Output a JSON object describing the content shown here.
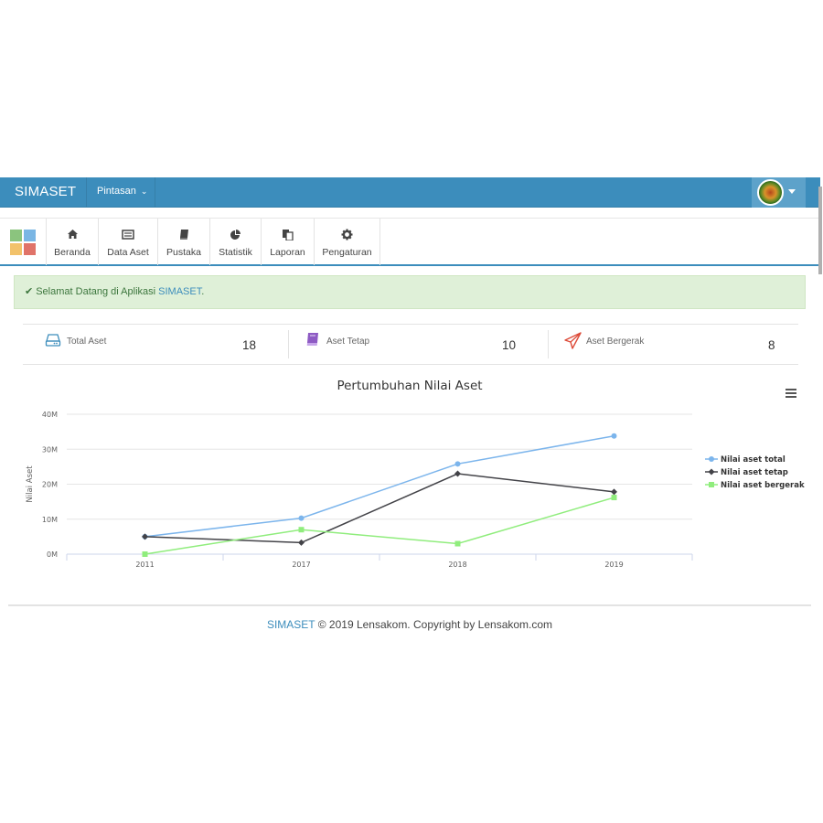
{
  "navbar": {
    "brand": "SIMASET",
    "shortcut_label": "Pintasan",
    "shortcut_caret": "⌄"
  },
  "toolbar": {
    "items": [
      {
        "label": "Beranda",
        "icon": "home-icon"
      },
      {
        "label": "Data Aset",
        "icon": "list-icon"
      },
      {
        "label": "Pustaka",
        "icon": "book-icon"
      },
      {
        "label": "Statistik",
        "icon": "pie-chart-icon"
      },
      {
        "label": "Laporan",
        "icon": "copy-icon"
      },
      {
        "label": "Pengaturan",
        "icon": "gear-icon"
      }
    ]
  },
  "alert": {
    "check": "✔",
    "text": "Selamat Datang di Aplikasi ",
    "brand": "SIMASET",
    "end": "."
  },
  "stats": [
    {
      "label": "Total Aset",
      "value": "18",
      "icon": "hard-drive-icon",
      "color": "#3c8dbc"
    },
    {
      "label": "Aset Tetap",
      "value": "10",
      "icon": "book-icon",
      "color": "#8e5bc4"
    },
    {
      "label": "Aset Bergerak",
      "value": "8",
      "icon": "paper-plane-icon",
      "color": "#dd4b39"
    }
  ],
  "chart_data": {
    "type": "line",
    "title": "Pertumbuhan Nilai Aset",
    "ylabel": "Nilai Aset",
    "xlabel": "",
    "categories": [
      "2011",
      "2017",
      "2018",
      "2019"
    ],
    "y_ticks": [
      "0M",
      "10M",
      "20M",
      "30M",
      "40M"
    ],
    "ylim": [
      0,
      40
    ],
    "grid": true,
    "legend_position": "right",
    "series": [
      {
        "name": "Nilai aset total",
        "values": [
          5,
          10.3,
          25.8,
          33.8
        ],
        "color": "#7cb5ec",
        "marker": "circle"
      },
      {
        "name": "Nilai aset tetap",
        "values": [
          5,
          3.3,
          23,
          17.8
        ],
        "color": "#434348",
        "marker": "diamond"
      },
      {
        "name": "Nilai aset bergerak",
        "values": [
          0,
          7,
          3,
          16.2
        ],
        "color": "#90ed7d",
        "marker": "square"
      }
    ]
  },
  "footer": {
    "brand": "SIMASET",
    "text": " © 2019 Lensakom. Copyright by Lensakom.com"
  }
}
